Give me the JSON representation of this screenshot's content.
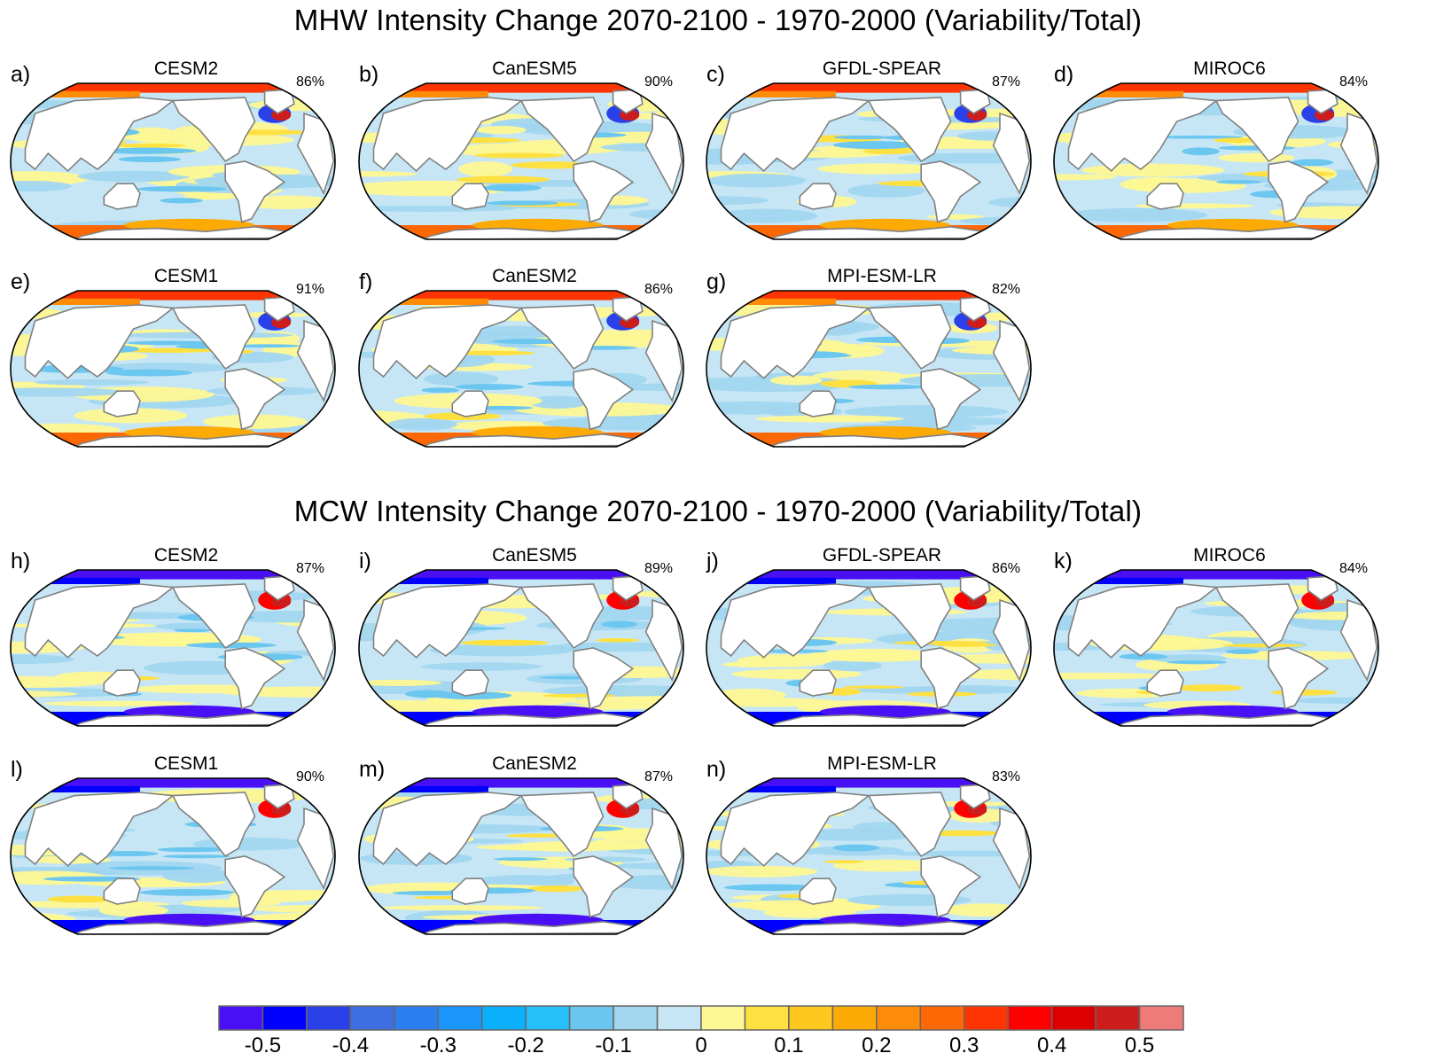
{
  "sections": [
    {
      "title": "MHW Intensity Change 2070-2100 - 1970-2000 (Variability/Total)",
      "panels": [
        {
          "letter": "a)",
          "model": "CESM2",
          "percent": "86%",
          "pattern": "mhw"
        },
        {
          "letter": "b)",
          "model": "CanESM5",
          "percent": "90%",
          "pattern": "mhw"
        },
        {
          "letter": "c)",
          "model": "GFDL-SPEAR",
          "percent": "87%",
          "pattern": "mhw"
        },
        {
          "letter": "d)",
          "model": "MIROC6",
          "percent": "84%",
          "pattern": "mhw"
        },
        {
          "letter": "e)",
          "model": "CESM1",
          "percent": "91%",
          "pattern": "mhw"
        },
        {
          "letter": "f)",
          "model": "CanESM2",
          "percent": "86%",
          "pattern": "mhw"
        },
        {
          "letter": "g)",
          "model": "MPI-ESM-LR",
          "percent": "82%",
          "pattern": "mhw"
        }
      ]
    },
    {
      "title": "MCW Intensity Change 2070-2100 - 1970-2000 (Variability/Total)",
      "panels": [
        {
          "letter": "h)",
          "model": "CESM2",
          "percent": "87%",
          "pattern": "mcw"
        },
        {
          "letter": "i)",
          "model": "CanESM5",
          "percent": "89%",
          "pattern": "mcw"
        },
        {
          "letter": "j)",
          "model": "GFDL-SPEAR",
          "percent": "86%",
          "pattern": "mcw"
        },
        {
          "letter": "k)",
          "model": "MIROC6",
          "percent": "84%",
          "pattern": "mcw"
        },
        {
          "letter": "l)",
          "model": "CESM1",
          "percent": "90%",
          "pattern": "mcw"
        },
        {
          "letter": "m)",
          "model": "CanESM2",
          "percent": "87%",
          "pattern": "mcw"
        },
        {
          "letter": "n)",
          "model": "MPI-ESM-LR",
          "percent": "83%",
          "pattern": "mcw"
        }
      ]
    }
  ],
  "colorbar": {
    "levels": [
      -0.55,
      -0.5,
      -0.45,
      -0.4,
      -0.35,
      -0.3,
      -0.25,
      -0.2,
      -0.15,
      -0.1,
      -0.05,
      0,
      0.05,
      0.1,
      0.15,
      0.2,
      0.25,
      0.3,
      0.35,
      0.4,
      0.45,
      0.5,
      0.55
    ],
    "tick_labels": [
      "-0.5",
      "-0.4",
      "-0.3",
      "-0.2",
      "-0.1",
      "0",
      "0.1",
      "0.2",
      "0.3",
      "0.4",
      "0.5"
    ],
    "colors": [
      "#4a10f5",
      "#0000ff",
      "#2a40e8",
      "#3f6ee0",
      "#2a7ef0",
      "#1995fb",
      "#0ab0fb",
      "#26c0f8",
      "#6bc6f0",
      "#a2d6ef",
      "#c6e6f5",
      "#fef894",
      "#fee140",
      "#fec81e",
      "#fdaa05",
      "#fe8c08",
      "#fe6804",
      "#fe3403",
      "#fe0000",
      "#dc0000",
      "#cd1c1c",
      "#ef7a7a"
    ]
  },
  "map_colors": {
    "land": "#ffffff",
    "coast": "#808080",
    "outline": "#000000"
  }
}
